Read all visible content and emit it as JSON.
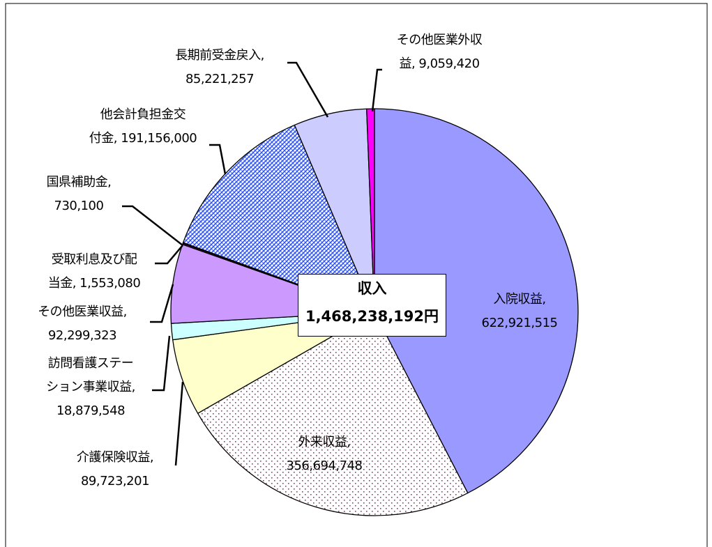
{
  "chart_data": {
    "type": "pie",
    "title": "収入",
    "total_label": "1,468,238,192円",
    "categories": [
      "入院収益",
      "外来収益",
      "介護保険収益",
      "訪問看護ステーション事業収益",
      "その他医業収益",
      "受取利息及び配当金",
      "国県補助金",
      "他会計負担金交付金",
      "長期前受金戻入",
      "その他医業外収益"
    ],
    "values": [
      622921515,
      356694748,
      89723201,
      18879548,
      92299323,
      1553080,
      730100,
      191156000,
      85221257,
      9059420
    ],
    "value_labels": [
      "622,921,515",
      "356,694,748",
      "89,723,201",
      "18,879,548",
      "92,299,323",
      "1,553,080",
      "730,100",
      "191,156,000",
      "85,221,257",
      "9,059,420"
    ],
    "colors": [
      "#9999ff",
      "dots",
      "#ffffcc",
      "#ccffff",
      "#cc99ff",
      "#660066",
      "#333399",
      "hatch",
      "#ccccff",
      "#ff00ff"
    ]
  }
}
